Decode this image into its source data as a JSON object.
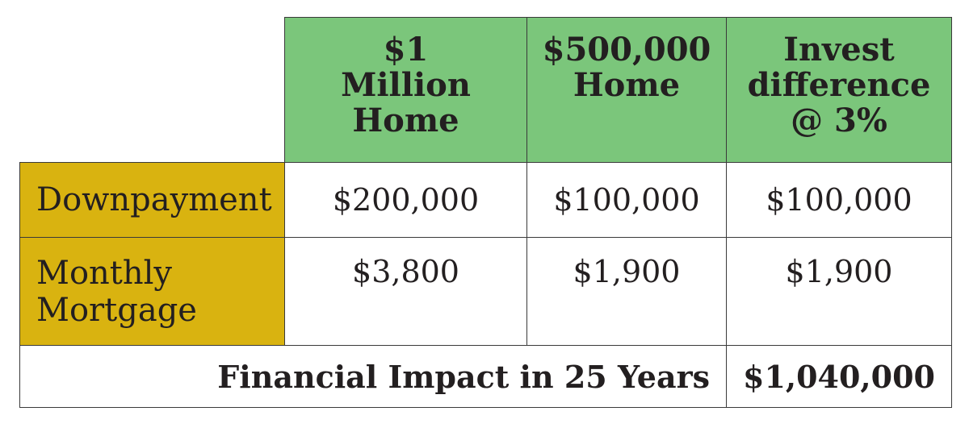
{
  "colors": {
    "header_bg": "#7bc67b",
    "row_label_bg": "#d9b310"
  },
  "headers": [
    "$1 Million Home",
    "$500,000 Home",
    "Invest difference @ 3%"
  ],
  "rows": [
    {
      "label": "Downpayment",
      "values": [
        "$200,000",
        "$100,000",
        "$100,000"
      ]
    },
    {
      "label": "Monthly Mortgage",
      "values": [
        "$3,800",
        "$1,900",
        "$1,900"
      ]
    }
  ],
  "footer": {
    "label": "Financial Impact in 25 Years",
    "value": "$1,040,000"
  }
}
